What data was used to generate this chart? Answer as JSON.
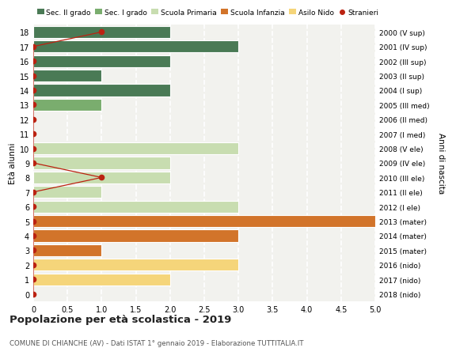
{
  "ages": [
    18,
    17,
    16,
    15,
    14,
    13,
    12,
    11,
    10,
    9,
    8,
    7,
    6,
    5,
    4,
    3,
    2,
    1,
    0
  ],
  "right_labels": [
    "2000 (V sup)",
    "2001 (IV sup)",
    "2002 (III sup)",
    "2003 (II sup)",
    "2004 (I sup)",
    "2005 (III med)",
    "2006 (II med)",
    "2007 (I med)",
    "2008 (V ele)",
    "2009 (IV ele)",
    "2010 (III ele)",
    "2011 (II ele)",
    "2012 (I ele)",
    "2013 (mater)",
    "2014 (mater)",
    "2015 (mater)",
    "2016 (nido)",
    "2017 (nido)",
    "2018 (nido)"
  ],
  "bar_values": [
    2,
    3,
    2,
    1,
    2,
    1,
    0,
    0,
    3,
    2,
    2,
    1,
    3,
    5,
    3,
    1,
    3,
    2,
    0
  ],
  "bar_colors": [
    "#4a7a55",
    "#4a7a55",
    "#4a7a55",
    "#4a7a55",
    "#4a7a55",
    "#7aad6e",
    "#7aad6e",
    "#7aad6e",
    "#c8ddb0",
    "#c8ddb0",
    "#c8ddb0",
    "#c8ddb0",
    "#c8ddb0",
    "#d2742a",
    "#d2742a",
    "#d2742a",
    "#f5d57a",
    "#f5d57a",
    "#f5d57a"
  ],
  "stranieri_x": [
    1,
    0,
    0,
    0,
    0,
    0,
    0,
    0,
    0,
    0,
    1,
    0,
    0,
    0,
    0,
    0,
    0,
    0,
    0
  ],
  "legend_labels": [
    "Sec. II grado",
    "Sec. I grado",
    "Scuola Primaria",
    "Scuola Infanzia",
    "Asilo Nido",
    "Stranieri"
  ],
  "legend_colors": [
    "#4a7a55",
    "#7aad6e",
    "#c8ddb0",
    "#d2742a",
    "#f5d57a",
    "#cc1100"
  ],
  "ylabel_left": "Età alunni",
  "ylabel_right": "Anni di nascita",
  "xlim": [
    0,
    5.0
  ],
  "xticks": [
    0,
    0.5,
    1.0,
    1.5,
    2.0,
    2.5,
    3.0,
    3.5,
    4.0,
    4.5,
    5.0
  ],
  "xtick_labels": [
    "0",
    "0.5",
    "1.0",
    "1.5",
    "2.0",
    "2.5",
    "3.0",
    "3.5",
    "4.0",
    "4.5",
    "5.0"
  ],
  "title": "Popolazione per età scolastica - 2019",
  "subtitle": "COMUNE DI CHIANCHE (AV) - Dati ISTAT 1° gennaio 2019 - Elaborazione TUTTITALIA.IT",
  "bg_color": "#f2f2ee",
  "grid_color": "#ffffff",
  "bar_edge_color": "#ffffff",
  "stranieri_color": "#bb2211",
  "stranieri_markersize": 4.5
}
